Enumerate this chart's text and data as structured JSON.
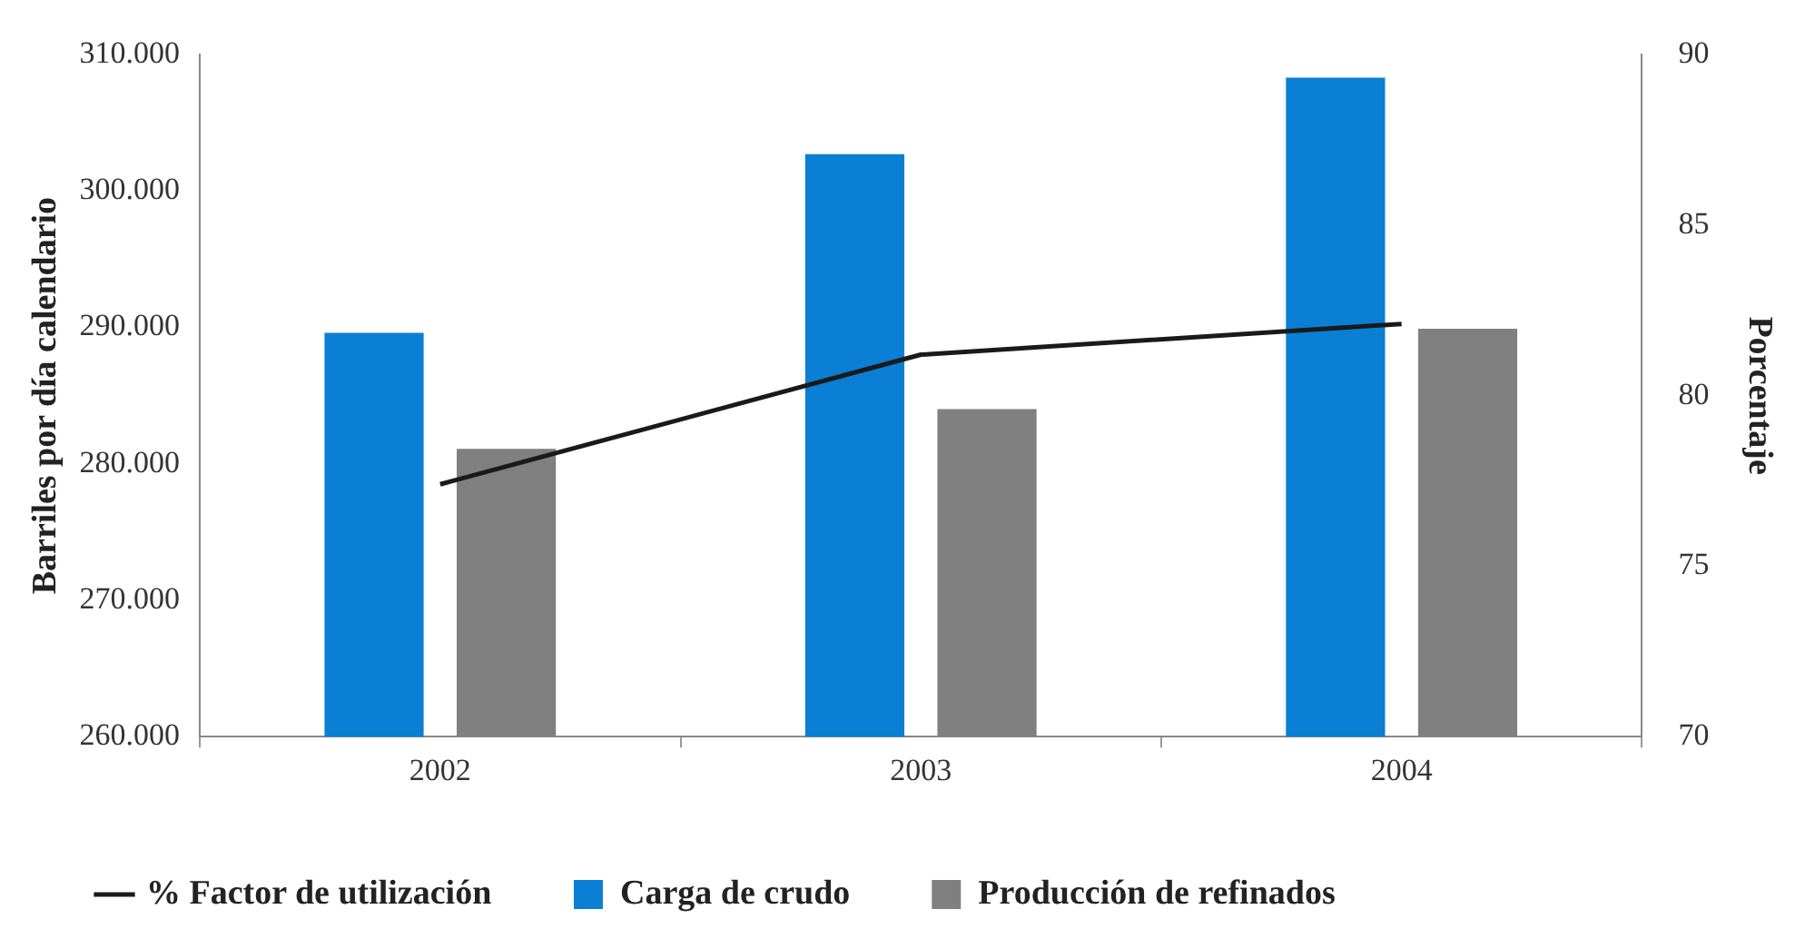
{
  "chart_data": {
    "type": "bar",
    "categories": [
      "2002",
      "2003",
      "2004"
    ],
    "series": [
      {
        "name": "Carga de crudo",
        "color": "#0a7fd4",
        "values": [
          289600,
          302700,
          308300
        ]
      },
      {
        "name": "Producción de refinados",
        "color": "#808080",
        "values": [
          281100,
          284000,
          289900
        ]
      },
      {
        "name": "% Factor de utilización",
        "type": "line",
        "axis": "y2",
        "color": "#1a1a1a",
        "values": [
          77.4,
          81.2,
          82.1
        ]
      }
    ],
    "ylabel": "Barriles por día calendario",
    "y2label": "Porcentaje",
    "ylim": [
      260000,
      310000
    ],
    "yticks": [
      {
        "value": 260000,
        "label": "260.000"
      },
      {
        "value": 270000,
        "label": "270.000"
      },
      {
        "value": 280000,
        "label": "280.000"
      },
      {
        "value": 290000,
        "label": "290.000"
      },
      {
        "value": 300000,
        "label": "300.000"
      },
      {
        "value": 310000,
        "label": "310.000"
      }
    ],
    "y2lim": [
      70,
      90
    ],
    "y2ticks": [
      70,
      75,
      80,
      85,
      90
    ],
    "grid": false,
    "legend": "bottom",
    "marker": "none",
    "line_style": "solid"
  }
}
